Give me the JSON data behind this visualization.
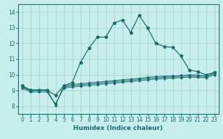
{
  "xlabel": "Humidex (Indice chaleur)",
  "background_color": "#c8eded",
  "grid_color": "#a8d4d4",
  "line_color": "#1a6b6b",
  "xlim": [
    -0.5,
    23.5
  ],
  "ylim": [
    7.5,
    14.5
  ],
  "xticks": [
    0,
    1,
    2,
    3,
    4,
    5,
    6,
    7,
    8,
    9,
    10,
    11,
    12,
    13,
    14,
    15,
    16,
    17,
    18,
    19,
    20,
    21,
    22,
    23
  ],
  "yticks": [
    8,
    9,
    10,
    11,
    12,
    13,
    14
  ],
  "series1_x": [
    0,
    1,
    2,
    3,
    4,
    5,
    6,
    7,
    8,
    9,
    10,
    11,
    12,
    13,
    14,
    15,
    16,
    17,
    18,
    19,
    20,
    21,
    22,
    23
  ],
  "series1_y": [
    9.3,
    9.0,
    9.0,
    9.0,
    8.7,
    9.3,
    9.5,
    10.8,
    11.7,
    12.4,
    12.4,
    13.3,
    13.5,
    12.7,
    13.8,
    13.0,
    12.0,
    11.8,
    11.75,
    11.2,
    10.3,
    10.2,
    10.0,
    10.15
  ],
  "series2_x": [
    0,
    1,
    2,
    3,
    4,
    5,
    6,
    7,
    8,
    9,
    10,
    11,
    12,
    13,
    14,
    15,
    16,
    17,
    18,
    19,
    20,
    21,
    22,
    23
  ],
  "series2_y": [
    9.3,
    9.05,
    9.05,
    9.05,
    8.05,
    9.3,
    9.38,
    9.43,
    9.48,
    9.53,
    9.58,
    9.63,
    9.68,
    9.73,
    9.78,
    9.83,
    9.88,
    9.91,
    9.93,
    9.96,
    10.0,
    9.98,
    9.95,
    10.15
  ],
  "series3_x": [
    0,
    1,
    2,
    3,
    4,
    5,
    6,
    7,
    8,
    9,
    10,
    11,
    12,
    13,
    14,
    15,
    16,
    17,
    18,
    19,
    20,
    21,
    22,
    23
  ],
  "series3_y": [
    9.22,
    8.98,
    8.98,
    8.98,
    8.1,
    9.22,
    9.3,
    9.35,
    9.4,
    9.45,
    9.5,
    9.55,
    9.6,
    9.65,
    9.7,
    9.75,
    9.8,
    9.83,
    9.86,
    9.88,
    9.92,
    9.9,
    9.87,
    10.08
  ],
  "series4_x": [
    0,
    1,
    2,
    3,
    4,
    5,
    6,
    7,
    8,
    9,
    10,
    11,
    12,
    13,
    14,
    15,
    16,
    17,
    18,
    19,
    20,
    21,
    22,
    23
  ],
  "series4_y": [
    9.15,
    8.9,
    8.9,
    8.9,
    8.15,
    9.15,
    9.22,
    9.27,
    9.32,
    9.37,
    9.42,
    9.47,
    9.52,
    9.57,
    9.62,
    9.67,
    9.72,
    9.75,
    9.79,
    9.81,
    9.85,
    9.83,
    9.8,
    10.0
  ]
}
